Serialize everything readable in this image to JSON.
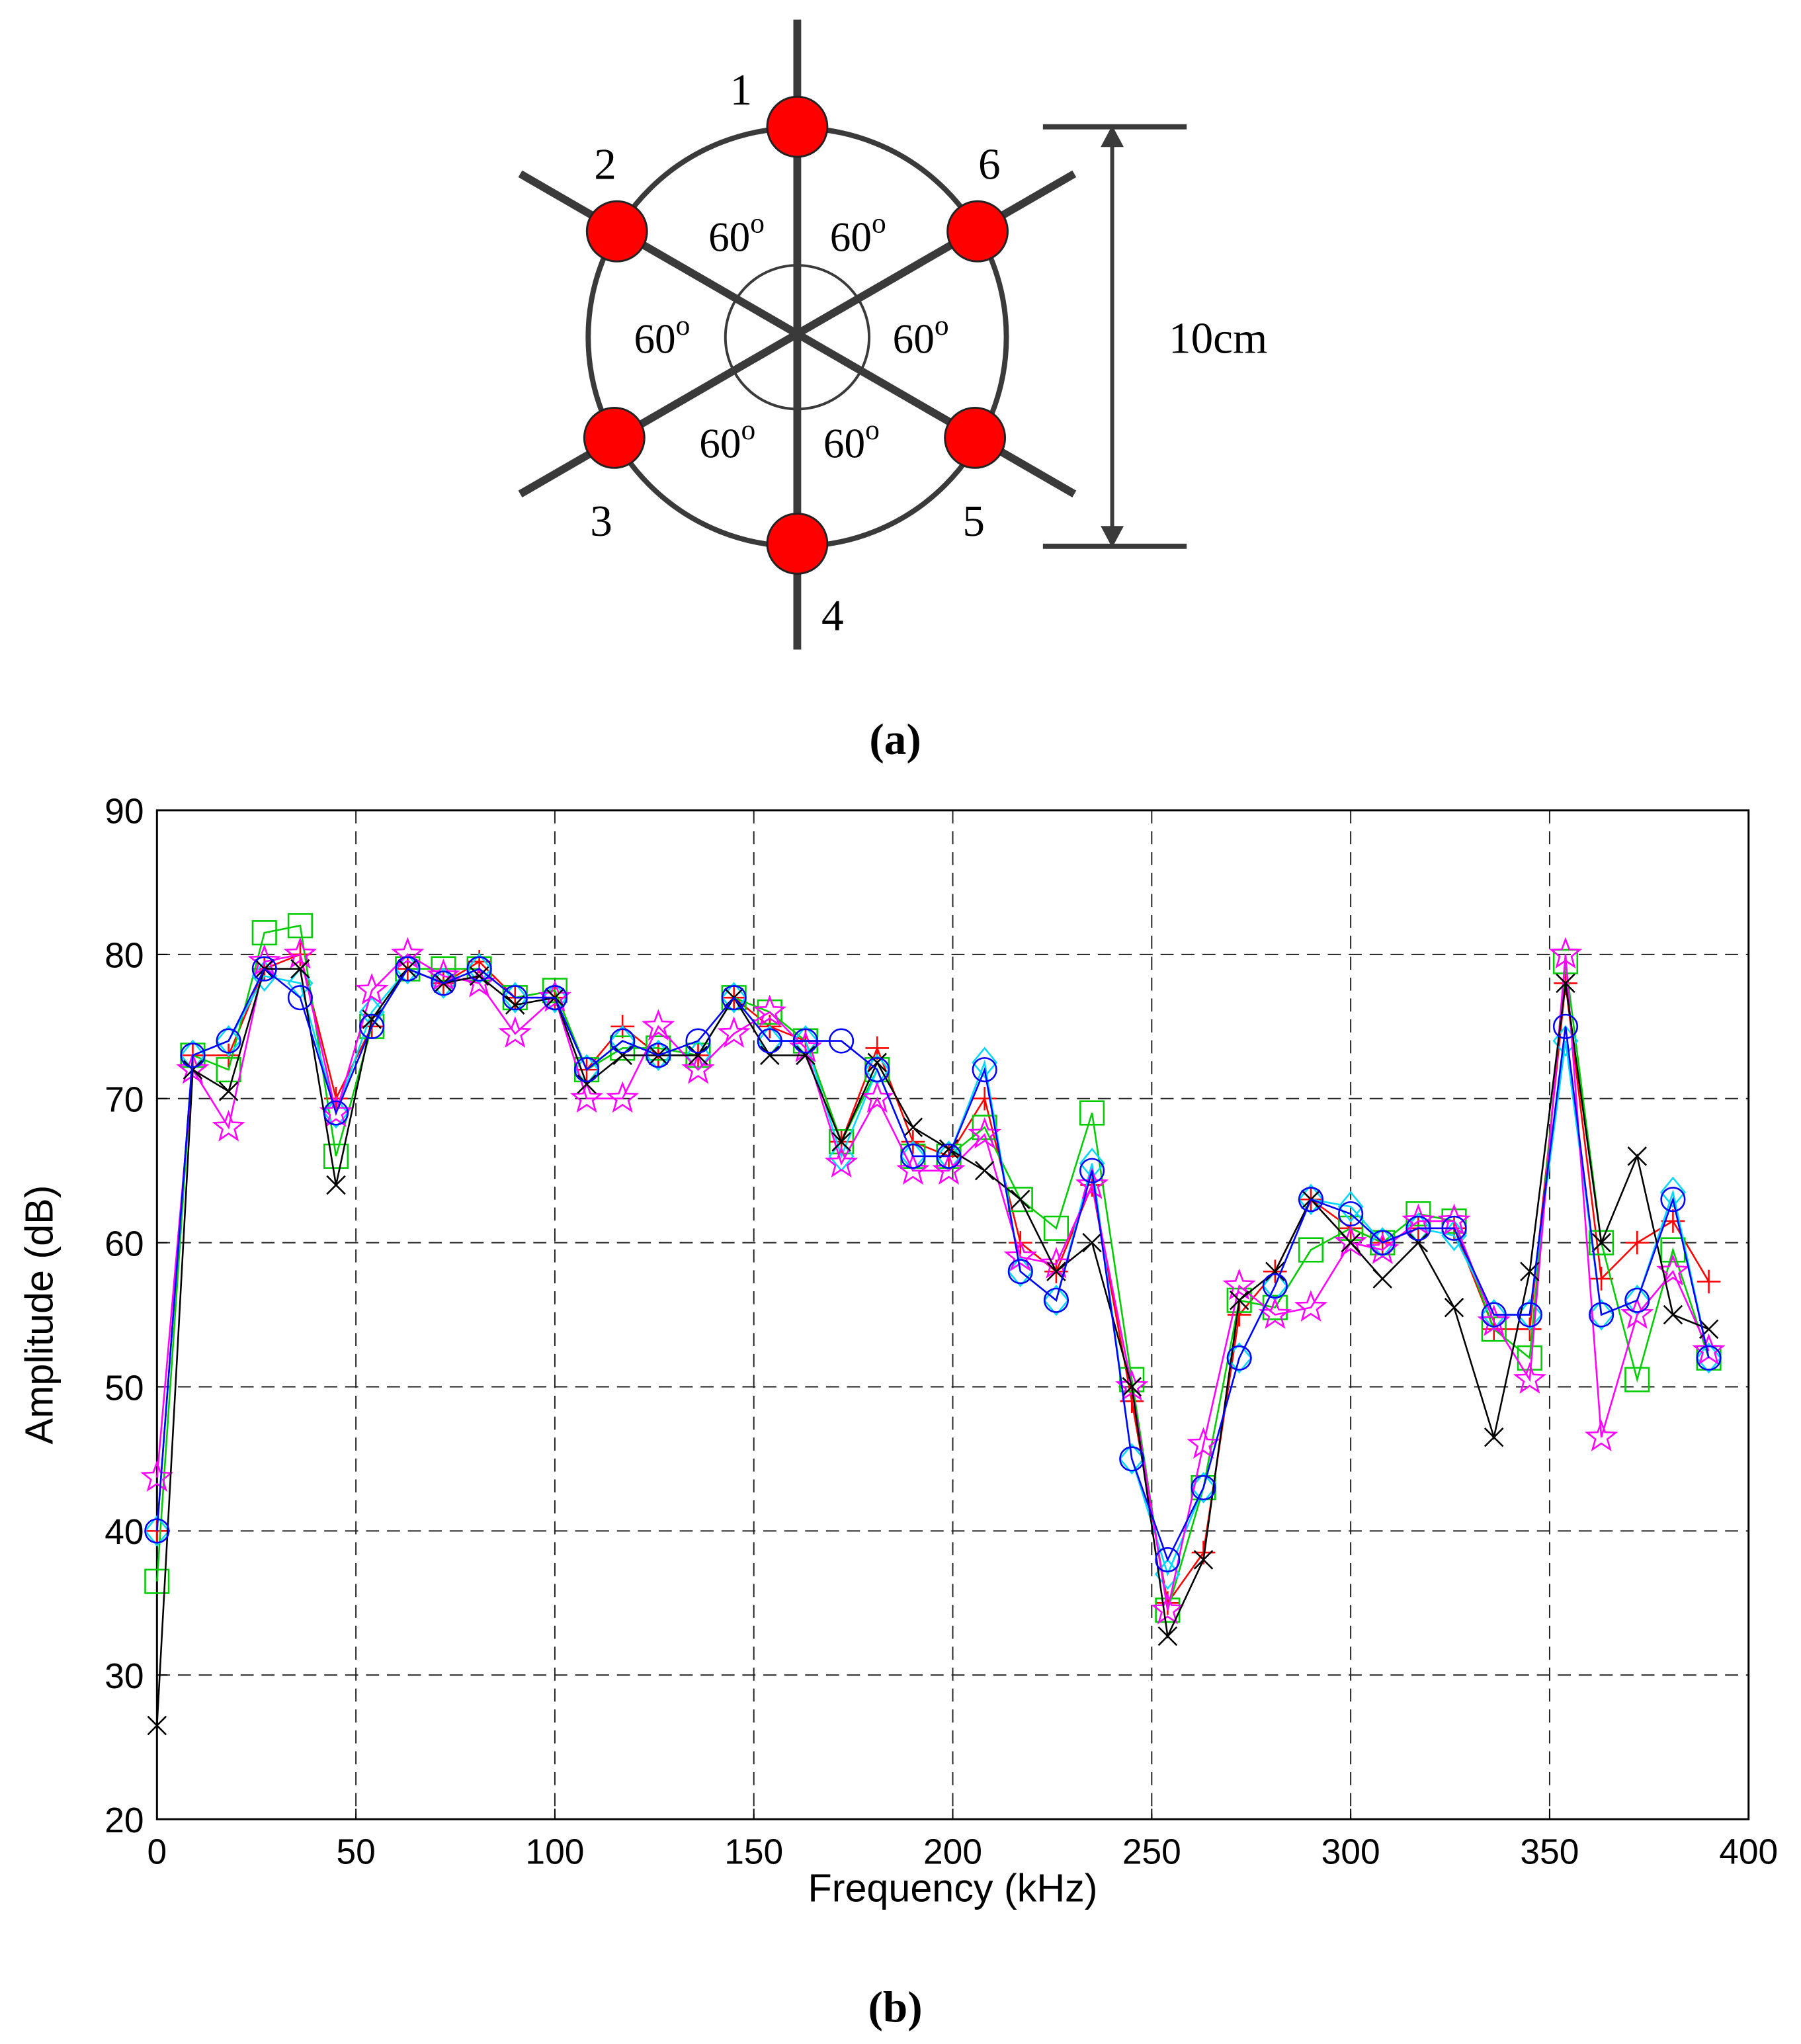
{
  "diagram": {
    "node_labels": [
      "1",
      "2",
      "3",
      "4",
      "5",
      "6"
    ],
    "angle_labels": [
      {
        "text": "60",
        "sup": "o"
      },
      {
        "text": "60",
        "sup": "o"
      },
      {
        "text": "60",
        "sup": "o"
      },
      {
        "text": "60",
        "sup": "o"
      },
      {
        "text": "60",
        "sup": "o"
      },
      {
        "text": "60",
        "sup": "o"
      }
    ],
    "dimension_label": "10cm",
    "caption": "(a)"
  },
  "chart_data": {
    "type": "line",
    "caption": "(b)",
    "x_label": "Frequency (kHz)",
    "y_label": "Amplitude (dB)",
    "x": [
      0,
      9,
      18,
      27,
      36,
      45,
      54,
      63,
      72,
      81,
      90,
      100,
      108,
      117,
      126,
      136,
      145,
      154,
      163,
      172,
      181,
      190,
      199,
      208,
      217,
      226,
      235,
      245,
      254,
      263,
      272,
      281,
      290,
      300,
      308,
      317,
      326,
      336,
      345,
      354,
      363,
      372,
      381,
      390
    ],
    "xlim": [
      0,
      400
    ],
    "xticks": [
      0,
      50,
      100,
      150,
      200,
      250,
      300,
      350,
      400
    ],
    "ylim": [
      20,
      90
    ],
    "yticks": [
      20,
      30,
      40,
      50,
      60,
      70,
      80,
      90
    ],
    "grid": true,
    "series": [
      {
        "color": "#ff0000",
        "marker": "plus",
        "values": [
          40,
          73,
          73,
          79,
          80,
          70,
          75,
          79,
          78,
          79.5,
          77,
          77,
          72,
          75,
          73,
          73,
          77,
          75,
          74,
          67,
          73.5,
          67,
          66,
          70,
          60,
          58,
          64,
          49,
          35,
          38.5,
          55,
          58,
          63,
          61,
          60,
          61,
          61,
          54,
          54,
          78,
          57.5,
          60,
          61.5,
          57.3
        ]
      },
      {
        "color": "#00cc00",
        "marker": "square",
        "values": [
          36.5,
          73,
          72,
          81.5,
          82,
          66,
          75,
          79,
          79,
          79,
          77,
          77.5,
          72,
          73.5,
          73.5,
          73,
          77,
          76,
          74,
          67,
          72,
          66,
          66,
          68,
          63,
          61,
          69,
          50.5,
          34.5,
          43,
          56,
          55.5,
          59.5,
          61,
          60,
          62,
          61.5,
          54,
          52,
          79.5,
          60,
          50.5,
          59.5,
          52
        ]
      },
      {
        "color": "#00d8ff",
        "marker": "diamond",
        "values": [
          40,
          73,
          74,
          78.5,
          78,
          69,
          76,
          79,
          78,
          79,
          77,
          77,
          72,
          74,
          73,
          73,
          77,
          74,
          74,
          66,
          72,
          66,
          66,
          72.5,
          58,
          56,
          65.5,
          45,
          37,
          43,
          52,
          57,
          63,
          62.5,
          60,
          61,
          60.5,
          55,
          55,
          74,
          55,
          56,
          63.5,
          52
        ]
      },
      {
        "color": "#ff00ff",
        "marker": "star",
        "values": [
          43.7,
          72,
          68,
          79.5,
          80,
          69,
          77.5,
          80,
          78.5,
          78,
          74.5,
          77,
          70,
          70,
          75,
          72,
          74.5,
          76,
          73.5,
          65.5,
          70,
          65,
          65,
          67.5,
          59,
          58.5,
          64,
          50,
          34.5,
          46,
          57,
          55,
          55.5,
          60,
          59.5,
          61.5,
          61.5,
          54.5,
          50.5,
          80,
          46.5,
          55,
          58,
          52.5
        ]
      },
      {
        "color": "#000000",
        "marker": "x",
        "values": [
          26.5,
          72,
          70.5,
          79,
          79,
          64,
          75.5,
          79,
          78,
          78.5,
          76.5,
          77,
          71,
          73,
          73,
          73,
          77,
          73,
          73,
          67,
          72.5,
          68,
          66.5,
          65,
          63,
          58,
          60,
          50,
          32.7,
          38,
          56,
          58,
          63,
          60,
          57.5,
          60,
          55.5,
          46.5,
          58,
          78,
          60,
          66,
          55,
          54
        ]
      },
      {
        "color": "#0000ff",
        "marker": "circle",
        "values": [
          40,
          73,
          74,
          79,
          77,
          69,
          75,
          79,
          78,
          79,
          77,
          77,
          72,
          74,
          73,
          74,
          77,
          74,
          74,
          74,
          72,
          66,
          66,
          72,
          58,
          56,
          65,
          45,
          38,
          43,
          52,
          57,
          63,
          62,
          60,
          61,
          61,
          55,
          55,
          75,
          55,
          56,
          63,
          52
        ]
      }
    ]
  }
}
